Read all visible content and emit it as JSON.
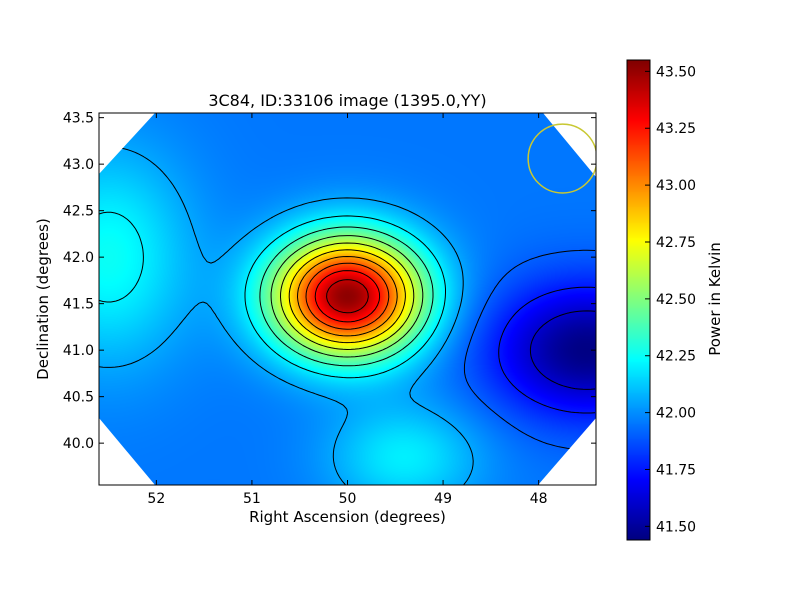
{
  "chart_data": {
    "type": "heatmap",
    "title": "3C84, ID:33106 image (1395.0,YY)",
    "xlabel": "Right Ascension (degrees)",
    "ylabel": "Declination (degrees)",
    "xlim": [
      52.6,
      47.4
    ],
    "ylim": [
      39.55,
      43.55
    ],
    "x_ticks": [
      {
        "value": 52,
        "label": "52"
      },
      {
        "value": 51,
        "label": "51"
      },
      {
        "value": 50,
        "label": "50"
      },
      {
        "value": 49,
        "label": "49"
      },
      {
        "value": 48,
        "label": "48"
      }
    ],
    "y_ticks": [
      {
        "value": 40.0,
        "label": "40.0"
      },
      {
        "value": 40.5,
        "label": "40.5"
      },
      {
        "value": 41.0,
        "label": "41.0"
      },
      {
        "value": 41.5,
        "label": "41.5"
      },
      {
        "value": 42.0,
        "label": "42.0"
      },
      {
        "value": 42.5,
        "label": "42.5"
      },
      {
        "value": 43.0,
        "label": "43.0"
      },
      {
        "value": 43.5,
        "label": "43.5"
      }
    ],
    "colorbar": {
      "label": "Power in Kelvin",
      "colormap": "jet",
      "range": [
        41.44,
        43.55
      ],
      "ticks": [
        {
          "value": 41.5,
          "label": "41.50"
        },
        {
          "value": 41.75,
          "label": "41.75"
        },
        {
          "value": 42.0,
          "label": "42.00"
        },
        {
          "value": 42.25,
          "label": "42.25"
        },
        {
          "value": 42.5,
          "label": "42.50"
        },
        {
          "value": 42.75,
          "label": "42.75"
        },
        {
          "value": 43.0,
          "label": "43.00"
        },
        {
          "value": 43.25,
          "label": "43.25"
        },
        {
          "value": 43.5,
          "label": "43.50"
        }
      ]
    },
    "contour_levels": [
      41.6,
      41.75,
      41.9,
      42.05,
      42.2,
      42.35,
      42.5,
      42.65,
      42.8,
      42.95,
      43.1,
      43.25,
      43.4
    ],
    "sources": [
      {
        "ra": 50.0,
        "dec": 41.58,
        "peak": 43.52,
        "sigma_ra": 0.55,
        "sigma_dec": 0.45
      },
      {
        "ra": 52.5,
        "dec": 42.0,
        "peak": 42.25,
        "sigma_ra": 0.6,
        "sigma_dec": 0.8
      },
      {
        "ra": 49.4,
        "dec": 39.85,
        "peak": 42.2,
        "sigma_ra": 0.55,
        "sigma_dec": 0.4
      },
      {
        "ra": 47.5,
        "dec": 41.0,
        "peak": 41.45,
        "sigma_ra": 0.7,
        "sigma_dec": 0.5
      }
    ],
    "beam": {
      "ra": 47.75,
      "dec": 43.06,
      "radius": 0.36,
      "color": "#c8c832"
    }
  }
}
